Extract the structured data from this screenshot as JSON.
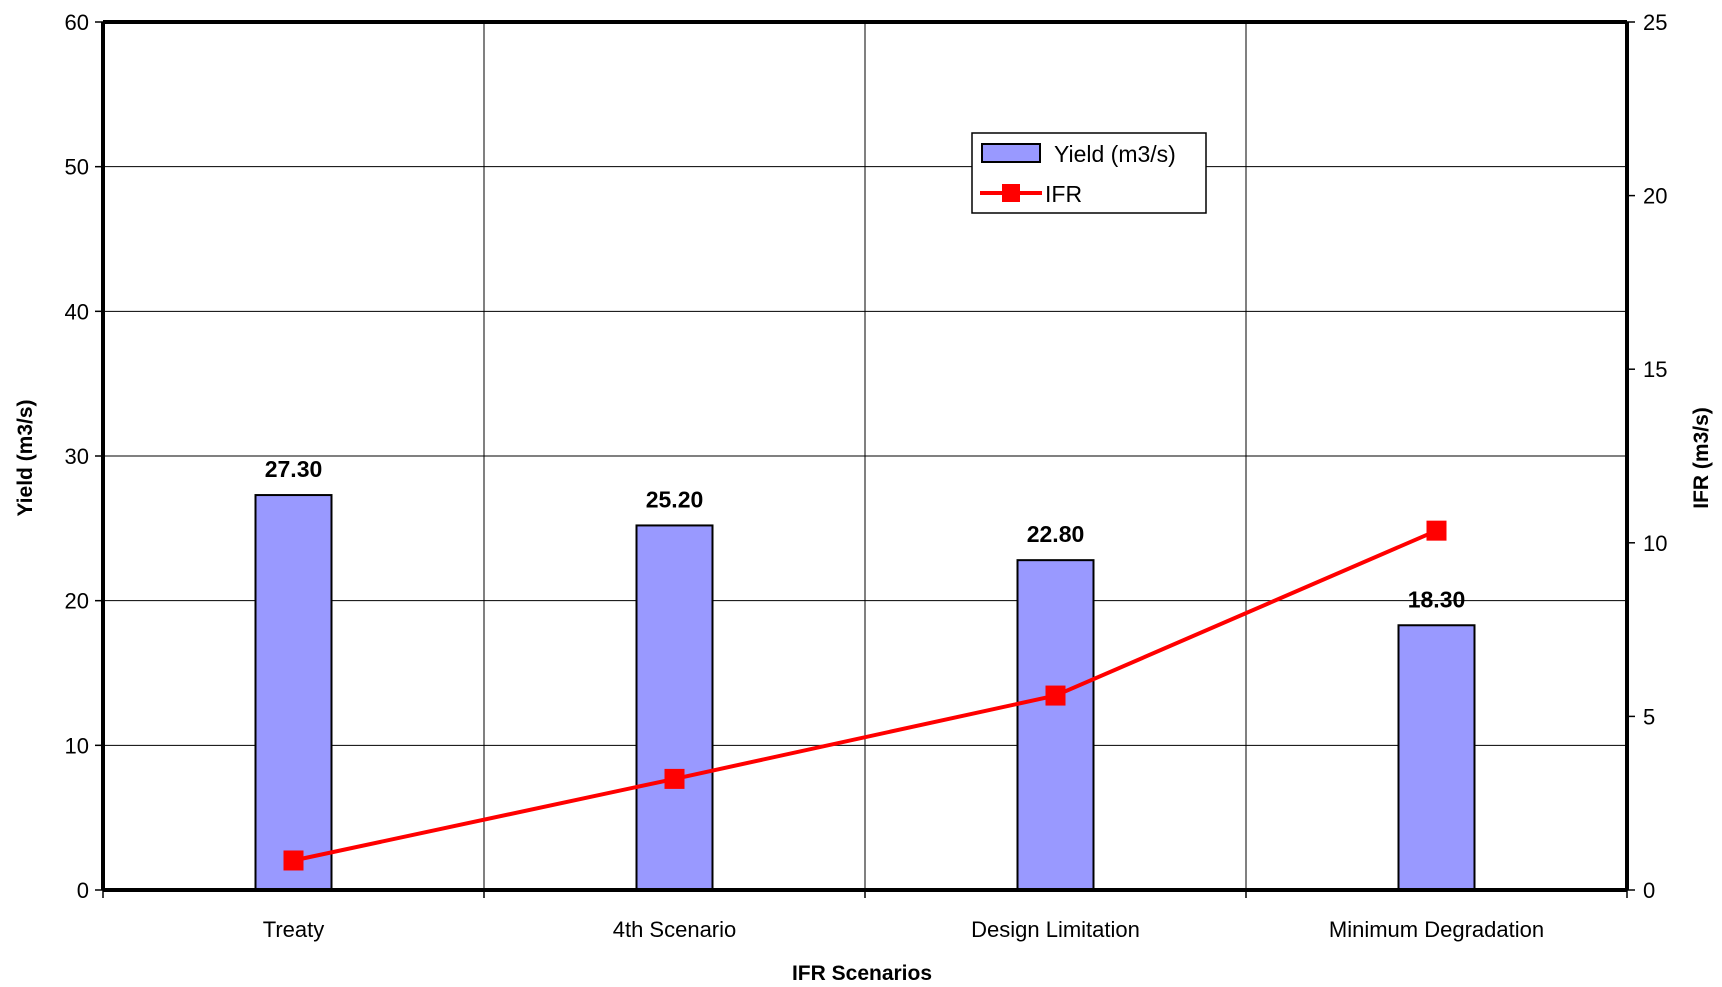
{
  "chart_data": {
    "type": "bar",
    "title": "",
    "xlabel": "IFR Scenarios",
    "ylabel": "Yield (m3/s)",
    "y2label": "IFR (m3/s)",
    "categories": [
      "Treaty",
      "4th Scenario",
      "Design Limitation",
      "Minimum Degradation"
    ],
    "ylim": [
      0,
      60
    ],
    "yticks": [
      0,
      10,
      20,
      30,
      40,
      50,
      60
    ],
    "y2lim": [
      0,
      25
    ],
    "y2ticks": [
      0,
      5,
      10,
      15,
      20,
      25
    ],
    "grid": true,
    "legend_position": "top-right",
    "series": [
      {
        "name": "Yield (m3/s)",
        "type": "bar",
        "axis": "left",
        "values": [
          27.3,
          25.2,
          22.8,
          18.3
        ],
        "labels": [
          "27.30",
          "25.20",
          "22.80",
          "18.30"
        ],
        "color": "#9999ff"
      },
      {
        "name": "IFR",
        "type": "line",
        "axis": "right",
        "values": [
          0.85,
          3.2,
          5.6,
          10.35
        ],
        "color": "#ff0000"
      }
    ]
  }
}
